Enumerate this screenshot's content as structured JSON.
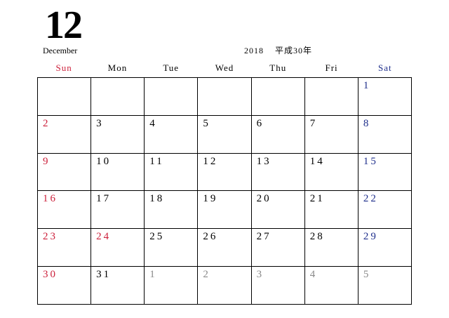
{
  "header": {
    "month_number": "12",
    "month_name": "December",
    "year": "2018",
    "era": "平成30年"
  },
  "weekdays": [
    "Sun",
    "Mon",
    "Tue",
    "Wed",
    "Thu",
    "Fri",
    "Sat"
  ],
  "colors": {
    "sunday": "#cc1f3a",
    "saturday": "#1f2f8c",
    "weekday": "#000000",
    "other_month": "#8a8a8a"
  },
  "weeks": [
    [
      "",
      "",
      "",
      "",
      "",
      "",
      "1"
    ],
    [
      "2",
      "3",
      "4",
      "5",
      "6",
      "7",
      "8"
    ],
    [
      "9",
      "10",
      "11",
      "12",
      "13",
      "14",
      "15"
    ],
    [
      "16",
      "17",
      "18",
      "19",
      "20",
      "21",
      "22"
    ],
    [
      "23",
      "24",
      "25",
      "26",
      "27",
      "28",
      "29"
    ],
    [
      "30",
      "31",
      "1",
      "2",
      "3",
      "4",
      "5"
    ]
  ],
  "holidays": [
    "24"
  ],
  "other_month_days_in_last_week": [
    "1",
    "2",
    "3",
    "4",
    "5"
  ]
}
